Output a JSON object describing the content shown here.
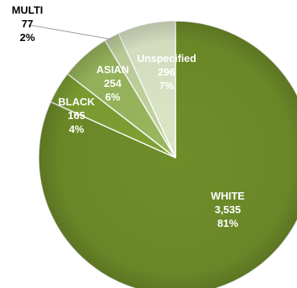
{
  "chart_data": {
    "type": "pie",
    "slices": [
      {
        "label": "WHITE",
        "count": "3,535",
        "pct": "81%",
        "value": 3535,
        "color": "#6f8e2a"
      },
      {
        "label": "BLACK",
        "count": "165",
        "pct": "4%",
        "value": 165,
        "color": "#7ea133"
      },
      {
        "label": "ASIAN",
        "count": "254",
        "pct": "6%",
        "value": 254,
        "color": "#9ab85e"
      },
      {
        "label": "MULTI",
        "count": "77",
        "pct": "2%",
        "value": 77,
        "color": "#c3d49e"
      },
      {
        "label": "Unspecified",
        "count": "296",
        "pct": "7%",
        "value": 296,
        "color": "#dde7c8"
      }
    ]
  }
}
